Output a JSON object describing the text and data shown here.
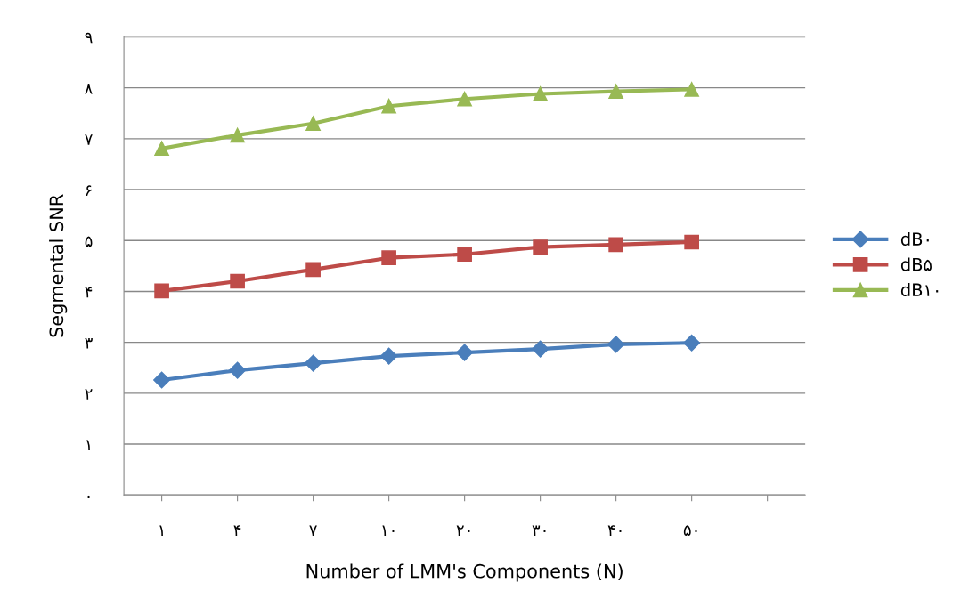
{
  "chart_data": {
    "type": "line",
    "xlabel": "Number of LMM's Components (N)",
    "ylabel": "Segmental SNR",
    "categories": [
      "۱",
      "۴",
      "۷",
      "۱۰",
      "۲۰",
      "۳۰",
      "۴۰",
      "۵۰",
      null
    ],
    "series": [
      {
        "name": "dB۰",
        "color": "#4a7ebb",
        "marker": "diamond",
        "values": [
          2.26,
          2.45,
          2.59,
          2.73,
          2.8,
          2.87,
          2.96,
          2.99,
          null
        ]
      },
      {
        "name": "dB۵",
        "color": "#be4b48",
        "marker": "square",
        "values": [
          4.01,
          4.2,
          4.43,
          4.66,
          4.73,
          4.87,
          4.92,
          4.97,
          null
        ]
      },
      {
        "name": "dB۱۰",
        "color": "#98b954",
        "marker": "triangle",
        "values": [
          6.81,
          7.07,
          7.3,
          7.64,
          7.78,
          7.88,
          7.93,
          7.97,
          null
        ]
      }
    ],
    "ylim": [
      0,
      9
    ],
    "yticks": [
      {
        "value": 0,
        "label": "۰"
      },
      {
        "value": 1,
        "label": "۱"
      },
      {
        "value": 2,
        "label": "۲"
      },
      {
        "value": 3,
        "label": "۳"
      },
      {
        "value": 4,
        "label": "۴"
      },
      {
        "value": 5,
        "label": "۵"
      },
      {
        "value": 6,
        "label": "۶"
      },
      {
        "value": 7,
        "label": "۷"
      },
      {
        "value": 8,
        "label": "۸"
      },
      {
        "value": 9,
        "label": "۹"
      }
    ],
    "grid": "y",
    "legend": "right",
    "line_style": "solid"
  }
}
